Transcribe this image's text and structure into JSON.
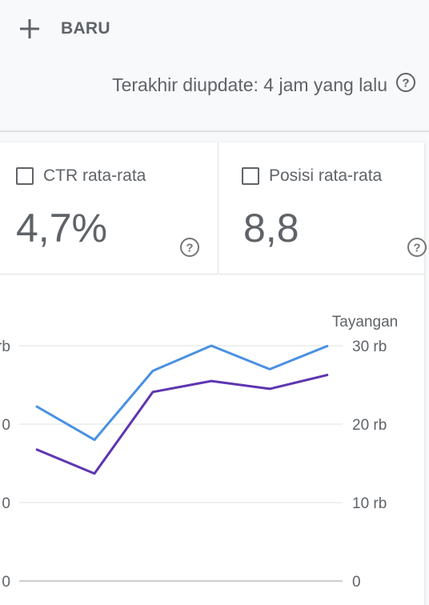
{
  "toolbar": {
    "new_label": "BARU",
    "new_icon": "plus-icon"
  },
  "status": {
    "updated_text": "Terakhir diupdate: 4 jam yang lalu",
    "help_icon": "help-circle-icon"
  },
  "metrics": [
    {
      "label": "CTR rata-rata",
      "value": "4,7%",
      "checked": false
    },
    {
      "label": "Posisi rata-rata",
      "value": "8,8",
      "checked": false
    }
  ],
  "chart_data": {
    "type": "line",
    "right_axis_label": "Tayangan",
    "left_tick_labels_visible": [
      "rb",
      "0",
      "0",
      "0"
    ],
    "right_ticks": [
      "30 rb",
      "20 rb",
      "10 rb",
      "0"
    ],
    "ylim": [
      0,
      30000
    ],
    "x_points": 6,
    "series": [
      {
        "color": "#4a90e2",
        "values": [
          22300,
          18000,
          26800,
          30000,
          27000,
          30000
        ]
      },
      {
        "color": "#5e35b1",
        "values": [
          16800,
          13700,
          24100,
          25500,
          24500,
          26300
        ]
      }
    ],
    "grid": true
  }
}
